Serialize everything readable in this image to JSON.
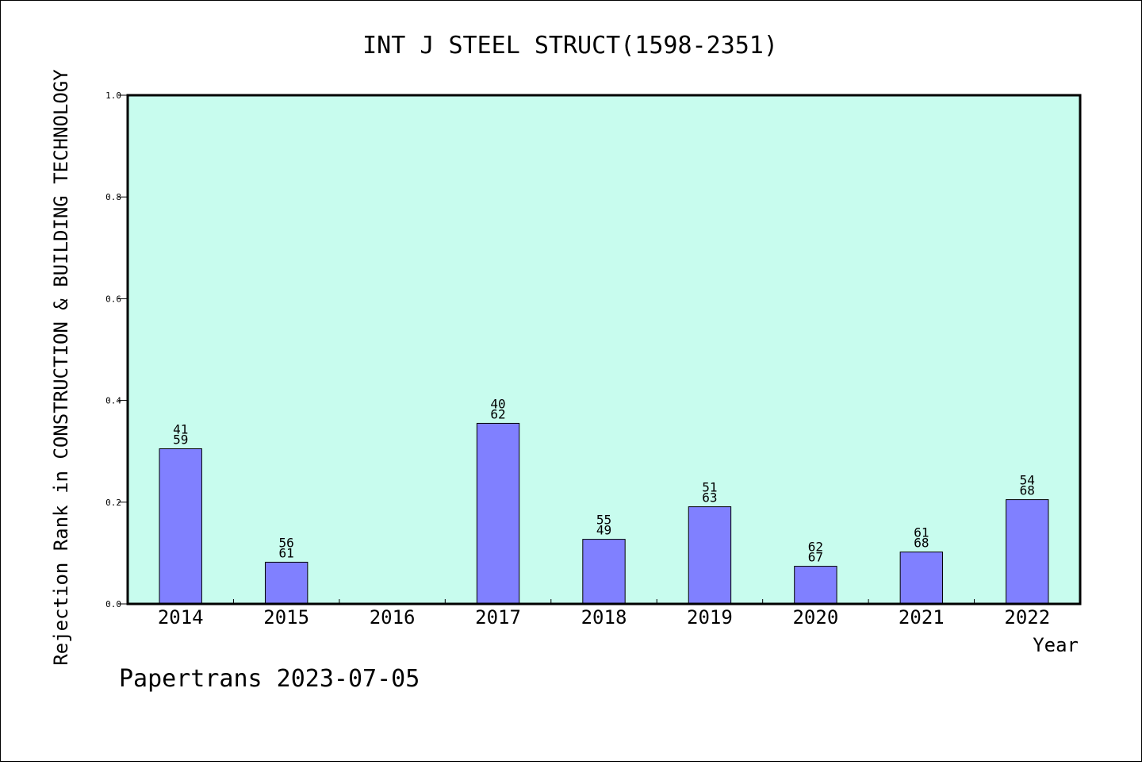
{
  "chart_data": {
    "type": "bar",
    "title": "INT J STEEL STRUCT(1598-2351)",
    "xlabel": "Year",
    "ylabel": "Rejection Rank in CONSTRUCTION & BUILDING TECHNOLOGY",
    "ylim": [
      0,
      1.0
    ],
    "yticks": [
      "0.0",
      "0.2",
      "0.4",
      "0.6",
      "0.8",
      "1.0"
    ],
    "categories": [
      "2014",
      "2015",
      "2016",
      "2017",
      "2018",
      "2019",
      "2020",
      "2021",
      "2022"
    ],
    "values": [
      0.305,
      0.082,
      null,
      0.355,
      0.127,
      0.191,
      0.074,
      0.102,
      0.205
    ],
    "labels_top": [
      "41",
      "56",
      "",
      "40",
      "55",
      "51",
      "62",
      "61",
      "54"
    ],
    "labels_bottom": [
      "59",
      "61",
      "",
      "62",
      "49",
      "63",
      "67",
      "68",
      "68"
    ],
    "grid": false,
    "legend": "none",
    "colors": {
      "plot_background": "#c8fcee",
      "bar_fill": "#8080ff",
      "bar_stroke": "#000000"
    }
  },
  "footer": {
    "text": "Papertrans 2023-07-05"
  }
}
